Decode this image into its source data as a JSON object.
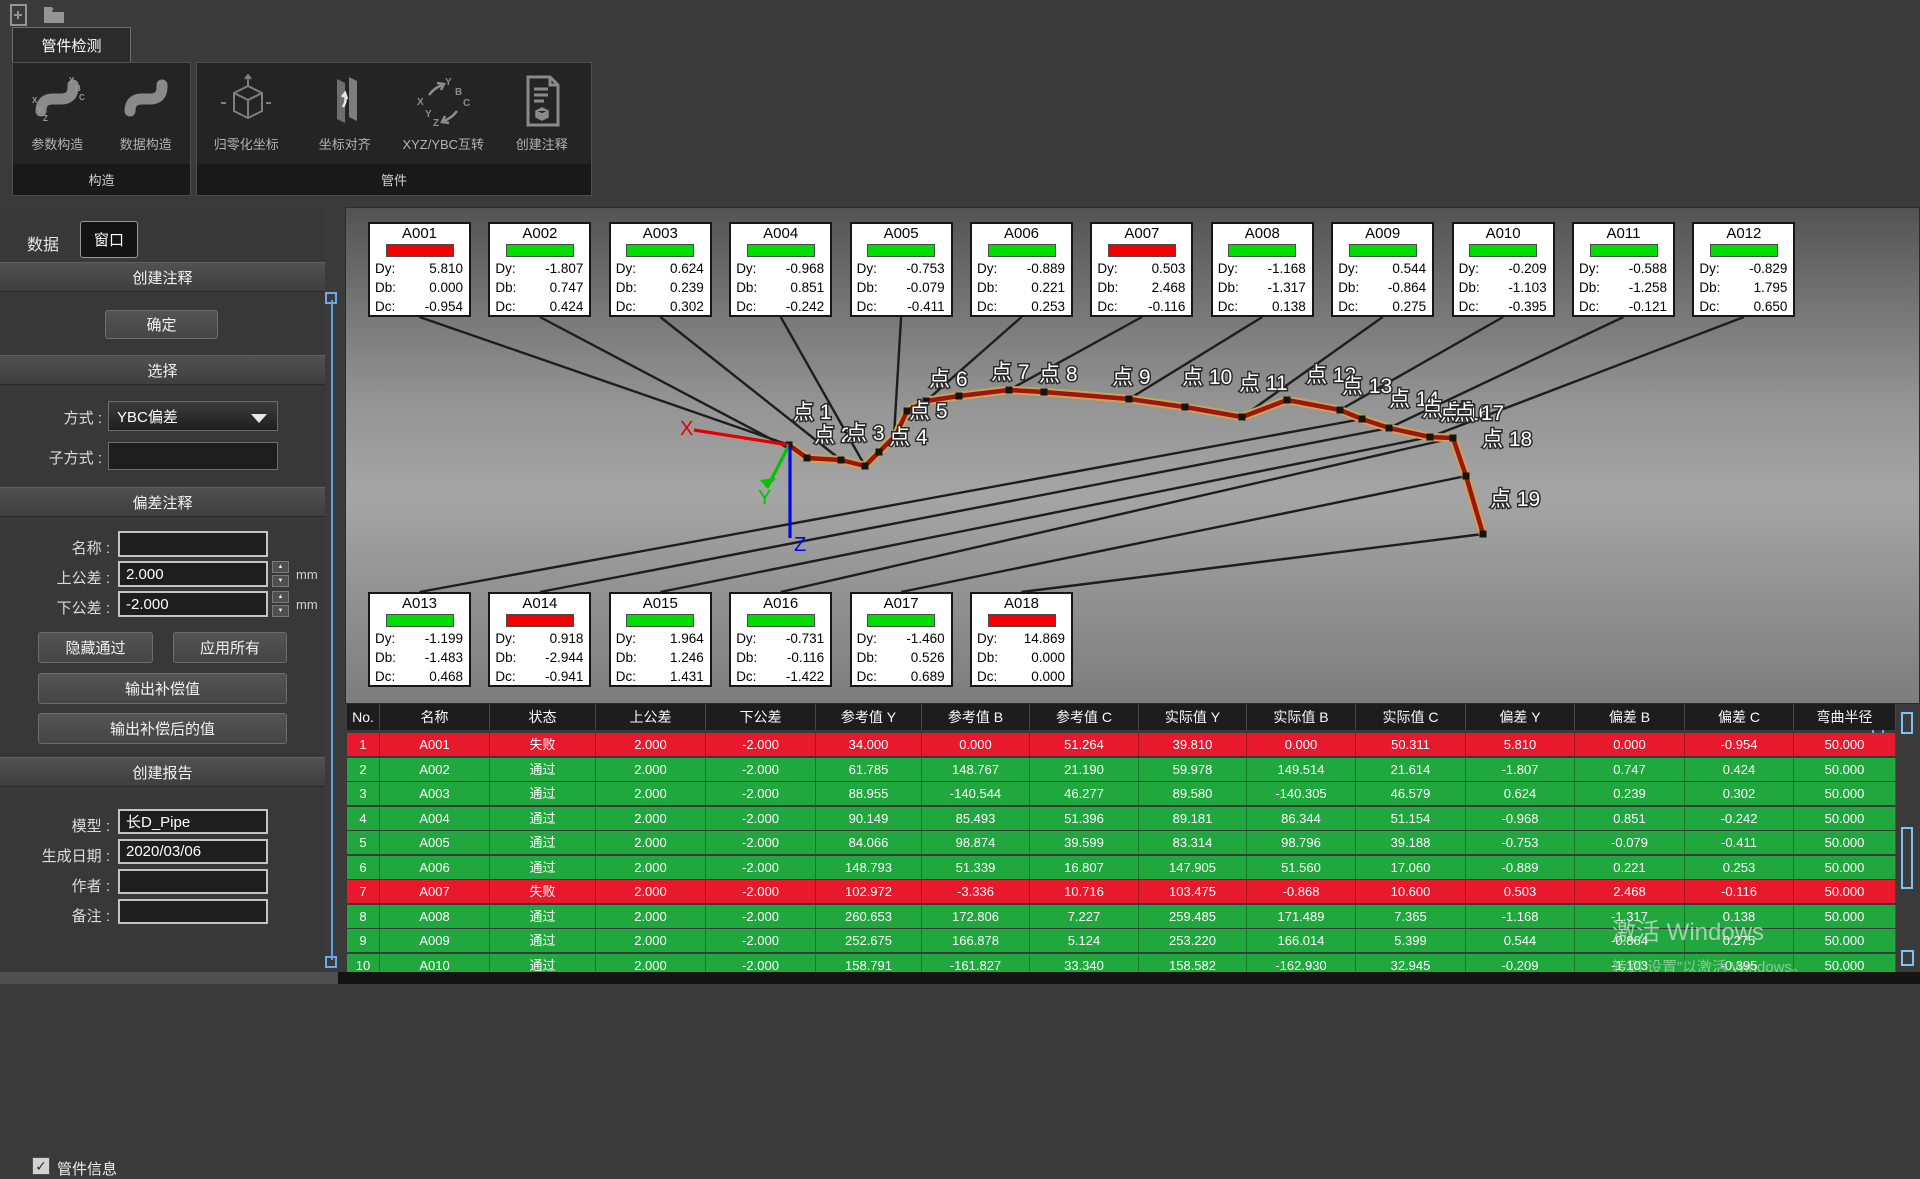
{
  "titlebar": {
    "icons": [
      "new-file-icon",
      "open-folder-icon"
    ]
  },
  "ribbon": {
    "tab": "管件检测",
    "groups": [
      {
        "label": "构造",
        "buttons": [
          {
            "label": "参数构造",
            "icon": "pipe-params-icon"
          },
          {
            "label": "数据构造",
            "icon": "pipe-data-icon"
          }
        ]
      },
      {
        "label": "管件",
        "buttons": [
          {
            "label": "归零化坐标",
            "icon": "zero-coords-cube-icon"
          },
          {
            "label": "坐标对齐",
            "icon": "align-coords-icon"
          },
          {
            "label": "XYZ/YBC互转",
            "icon": "xyz-ybc-convert-icon"
          },
          {
            "label": "创建注释",
            "icon": "create-annotation-doc-icon"
          }
        ]
      }
    ]
  },
  "sidebar": {
    "tab_data": "数据",
    "tab_window": "窗口",
    "create_annotation_header": "创建注释",
    "ok_button": "确定",
    "select_header": "选择",
    "mode_label": "方式 :",
    "mode_value": "YBC偏差",
    "submode_label": "子方式 :",
    "deviation_header": "偏差注释",
    "name_label": "名称 :",
    "name_value": "",
    "upper_tol_label": "上公差 :",
    "upper_tol_value": "2.000",
    "upper_tol_unit": "mm",
    "lower_tol_label": "下公差 :",
    "lower_tol_value": "-2.000",
    "lower_tol_unit": "mm",
    "hide_pass_button": "隐藏通过",
    "apply_all_button": "应用所有",
    "output_comp_button": "输出补偿值",
    "output_comp_after_button": "输出补偿后的值",
    "create_report_header": "创建报告",
    "model_label": "模型 :",
    "model_value": "长D_Pipe",
    "date_label": "生成日期 :",
    "date_value": "2020/03/06",
    "author_label": "作者 :",
    "author_value": "",
    "remark_label": "备注 :",
    "remark_value": "",
    "pipe_info_label": "管件信息",
    "pipe_info_checked": "✓"
  },
  "viewport": {
    "axis_labels": {
      "x": "X",
      "y": "Y",
      "z": "Z"
    },
    "value_labels": {
      "dy": "Dy:",
      "db": "Db:",
      "dc": "Dc:"
    },
    "status_colors": {
      "pass": "#00dd00",
      "fail": "#f40000"
    },
    "annotations_row1": [
      {
        "id": "A001",
        "status": "fail",
        "dy": "5.810",
        "db": "0.000",
        "dc": "-0.954"
      },
      {
        "id": "A002",
        "status": "pass",
        "dy": "-1.807",
        "db": "0.747",
        "dc": "0.424"
      },
      {
        "id": "A003",
        "status": "pass",
        "dy": "0.624",
        "db": "0.239",
        "dc": "0.302"
      },
      {
        "id": "A004",
        "status": "pass",
        "dy": "-0.968",
        "db": "0.851",
        "dc": "-0.242"
      },
      {
        "id": "A005",
        "status": "pass",
        "dy": "-0.753",
        "db": "-0.079",
        "dc": "-0.411"
      },
      {
        "id": "A006",
        "status": "pass",
        "dy": "-0.889",
        "db": "0.221",
        "dc": "0.253"
      },
      {
        "id": "A007",
        "status": "fail",
        "dy": "0.503",
        "db": "2.468",
        "dc": "-0.116"
      },
      {
        "id": "A008",
        "status": "pass",
        "dy": "-1.168",
        "db": "-1.317",
        "dc": "0.138"
      },
      {
        "id": "A009",
        "status": "pass",
        "dy": "0.544",
        "db": "-0.864",
        "dc": "0.275"
      },
      {
        "id": "A010",
        "status": "pass",
        "dy": "-0.209",
        "db": "-1.103",
        "dc": "-0.395"
      },
      {
        "id": "A011",
        "status": "pass",
        "dy": "-0.588",
        "db": "-1.258",
        "dc": "-0.121"
      },
      {
        "id": "A012",
        "status": "pass",
        "dy": "-0.829",
        "db": "1.795",
        "dc": "0.650"
      }
    ],
    "annotations_row2": [
      {
        "id": "A013",
        "status": "pass",
        "dy": "-1.199",
        "db": "-1.483",
        "dc": "0.468"
      },
      {
        "id": "A014",
        "status": "fail",
        "dy": "0.918",
        "db": "-2.944",
        "dc": "-0.941"
      },
      {
        "id": "A015",
        "status": "pass",
        "dy": "1.964",
        "db": "1.246",
        "dc": "1.431"
      },
      {
        "id": "A016",
        "status": "pass",
        "dy": "-0.731",
        "db": "-0.116",
        "dc": "-1.422"
      },
      {
        "id": "A017",
        "status": "pass",
        "dy": "-1.460",
        "db": "0.526",
        "dc": "0.689"
      },
      {
        "id": "A018",
        "status": "fail",
        "dy": "14.869",
        "db": "0.000",
        "dc": "0.000"
      }
    ],
    "points": [
      "点 1",
      "点 2",
      "点 3",
      "点 4",
      "点 5",
      "点 6",
      "点 7",
      "点 8",
      "点 9",
      "点 10",
      "点 11",
      "点 12",
      "点 13",
      "点 14",
      "点 15",
      "点 16",
      "点 17",
      "点 18",
      "点 19"
    ]
  },
  "table": {
    "columns": [
      "No.",
      "名称",
      "状态",
      "上公差",
      "下公差",
      "参考值 Y",
      "参考值 B",
      "参考值 C",
      "实际值 Y",
      "实际值 B",
      "实际值 C",
      "偏差 Y",
      "偏差 B",
      "偏差 C",
      "弯曲半径"
    ],
    "row_colors": {
      "pass": "#20a83e",
      "fail": "#e8192c"
    },
    "rows": [
      {
        "status": "fail",
        "cells": [
          "1",
          "A001",
          "失败",
          "2.000",
          "-2.000",
          "34.000",
          "0.000",
          "51.264",
          "39.810",
          "0.000",
          "50.311",
          "5.810",
          "0.000",
          "-0.954",
          "50.000"
        ]
      },
      {
        "status": "pass",
        "cells": [
          "2",
          "A002",
          "通过",
          "2.000",
          "-2.000",
          "61.785",
          "148.767",
          "21.190",
          "59.978",
          "149.514",
          "21.614",
          "-1.807",
          "0.747",
          "0.424",
          "50.000"
        ]
      },
      {
        "status": "pass",
        "cells": [
          "3",
          "A003",
          "通过",
          "2.000",
          "-2.000",
          "88.955",
          "-140.544",
          "46.277",
          "89.580",
          "-140.305",
          "46.579",
          "0.624",
          "0.239",
          "0.302",
          "50.000"
        ]
      },
      {
        "status": "pass",
        "cells": [
          "4",
          "A004",
          "通过",
          "2.000",
          "-2.000",
          "90.149",
          "85.493",
          "51.396",
          "89.181",
          "86.344",
          "51.154",
          "-0.968",
          "0.851",
          "-0.242",
          "50.000"
        ]
      },
      {
        "status": "pass",
        "cells": [
          "5",
          "A005",
          "通过",
          "2.000",
          "-2.000",
          "84.066",
          "98.874",
          "39.599",
          "83.314",
          "98.796",
          "39.188",
          "-0.753",
          "-0.079",
          "-0.411",
          "50.000"
        ]
      },
      {
        "status": "pass",
        "cells": [
          "6",
          "A006",
          "通过",
          "2.000",
          "-2.000",
          "148.793",
          "51.339",
          "16.807",
          "147.905",
          "51.560",
          "17.060",
          "-0.889",
          "0.221",
          "0.253",
          "50.000"
        ]
      },
      {
        "status": "fail",
        "cells": [
          "7",
          "A007",
          "失败",
          "2.000",
          "-2.000",
          "102.972",
          "-3.336",
          "10.716",
          "103.475",
          "-0.868",
          "10.600",
          "0.503",
          "2.468",
          "-0.116",
          "50.000"
        ]
      },
      {
        "status": "pass",
        "cells": [
          "8",
          "A008",
          "通过",
          "2.000",
          "-2.000",
          "260.653",
          "172.806",
          "7.227",
          "259.485",
          "171.489",
          "7.365",
          "-1.168",
          "-1.317",
          "0.138",
          "50.000"
        ]
      },
      {
        "status": "pass",
        "cells": [
          "9",
          "A009",
          "通过",
          "2.000",
          "-2.000",
          "252.675",
          "166.878",
          "5.124",
          "253.220",
          "166.014",
          "5.399",
          "0.544",
          "-0.864",
          "0.275",
          "50.000"
        ]
      },
      {
        "status": "pass",
        "cells": [
          "10",
          "A010",
          "通过",
          "2.000",
          "-2.000",
          "158.791",
          "-161.827",
          "33.340",
          "158.582",
          "-162.930",
          "32.945",
          "-0.209",
          "-1.103",
          "-0.395",
          "50.000"
        ]
      }
    ]
  },
  "watermark": {
    "line1": "激活 Windows",
    "line2": "转到“设置”以激活 Windows。"
  }
}
